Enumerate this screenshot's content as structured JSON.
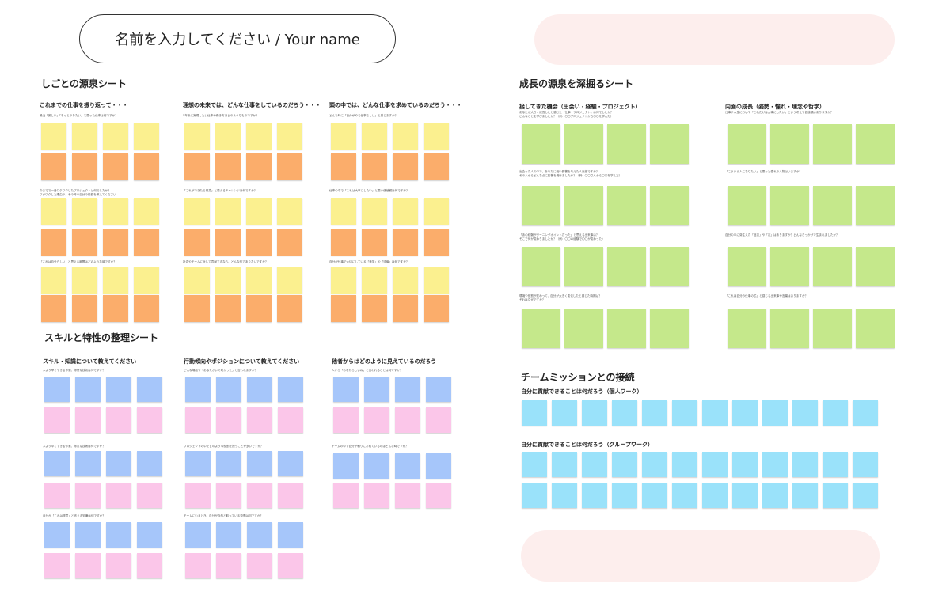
{
  "name_field": {
    "label": "名前を入力してください / Your name"
  },
  "colors": {
    "yellow": "#fbf08f",
    "orange": "#fbad6b",
    "blue": "#a6c6fa",
    "pink": "#fbc6e9",
    "green": "#c5e88b",
    "cyan": "#9ae2fa",
    "pill_pink": "#fdeeed"
  },
  "shigoto_sheet": {
    "title": "しごとの源泉シート",
    "columns": [
      {
        "title": "これまでの仕事を振り返って・・・",
        "questions": [
          "最近「楽しい」「もっとやりたい」と思った仕事は何ですか？",
          "今までで一番ワクワクしたプロジェクトは何でしたか？\nワクワクした理由や、その時の自分の役割を教えてください",
          "「これは自分らしい」と思える瞬間はどのような時ですか？"
        ]
      },
      {
        "title": "理想の未来では、どんな仕事をしているのだろう・・・",
        "questions": [
          "5年後に実現したい仕事や働き方はどのようなものですか？",
          "「これができたら最高」と思えるチャレンジは何ですか？",
          "社会やチームに対して貢献するなら、どんな形でありたいですか？"
        ]
      },
      {
        "title": "頭の中では、どんな仕事を求めているのだろう・・・",
        "questions": [
          "どんな時に「自分がやる仕事らしい」と感じますか？",
          "仕事の中で「これは大事にしたい」と思う価値観は何ですか？",
          "自分が仕事で大切にしている「美学」や「流儀」は何ですか？"
        ]
      }
    ]
  },
  "skill_sheet": {
    "title": "スキルと特性の整理シート",
    "columns": [
      {
        "title": "スキル・知識について教えてください",
        "questions": [
          "人より早くできる作業、得意な技術は何ですか？",
          "人より早くできる作業、得意な技術は何ですか？",
          "自分が「これは得意」と言える知識は何ですか？"
        ]
      },
      {
        "title": "行動傾向やポジションについて教えてください",
        "questions": [
          "どんな場面で「あなたがいて助かった」と言われますか？",
          "プロジェクトの中でどのような役割を担うことが多いですか？",
          "チームにいるとき、自分が自然と取っている役割は何ですか？"
        ]
      },
      {
        "title": "他者からはどのように見えているのだろう",
        "questions": [
          "人から「あなたらしいね」と言われることは何ですか？",
          "チームの中で自分が頼りにされているのはどんな時ですか？"
        ]
      }
    ]
  },
  "seichou_sheet": {
    "title": "成長の源泉を深掘るシート",
    "columns": [
      {
        "title": "接してきた機会（出会い・経験・プロジェクト）",
        "questions": [
          "あなたが大きく成長したと感じた「仕事・プロジェクト」は何でしたか？\nどんなことを学びましたか？（例：〇〇プロジェクトから〇〇を学んだ）",
          "出会った人の中で、あなたに強い影響を与えた人は誰ですか？\nその人からどんな点に影響を受けましたか？（例：〇〇さんから〇〇を学んだ）",
          "「あの経験がターニングポイントだった」と思える出来事は？\nそこで何が変わりましたか？（例：〇〇の経験で〇〇が変わった）",
          "環境や役割が変わって、自分が大きく変化したと感じた時期は？\nそれはなぜですか？"
        ]
      },
      {
        "title": "内面の成長（姿勢・憧れ・理念や哲学）",
        "questions": [
          "仕事や人生において「これだけは大事にしたい」という考えや価値観はありますか？",
          "「こういう人になりたい」と思った憧れの人物はいますか？",
          "自分の中に芽生えた「信念」や「志」はありますか？どんなきっかけで生まれましたか？",
          "「これは自分の仕事の芯」と感じる出来事や言葉はありますか？"
        ]
      }
    ]
  },
  "team_sheet": {
    "title": "チームミッションとの接続",
    "rows": [
      {
        "title": "自分に貢献できることは何だろう（個人ワーク）"
      },
      {
        "title": "自分に貢献できることは何だろう（グループワーク）"
      }
    ]
  }
}
